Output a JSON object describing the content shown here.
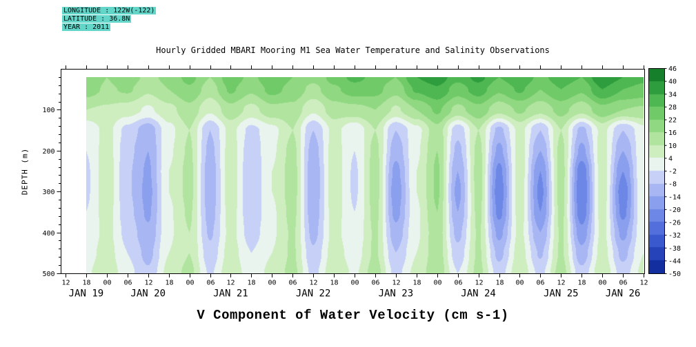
{
  "header": {
    "highlight_color": "#63d6c9",
    "lines": [
      "LONGITUDE : 122W(-122)",
      "LATITUDE : 36.8N",
      "YEAR : 2011"
    ]
  },
  "title": "Hourly Gridded MBARI Mooring M1 Sea Water Temperature and Salinity Observations",
  "bottom_label": "V Component of Water Velocity (cm s-1)",
  "chart_data": {
    "type": "heatmap",
    "title": "Hourly Gridded MBARI Mooring M1 Sea Water Temperature and Salinity Observations",
    "xlabel": "V Component of Water Velocity (cm s-1)",
    "ylabel": "DEPTH (m)",
    "x_start": "JAN 19 12:00 2011",
    "x_end": "JAN 26 12:00 2011",
    "x_tick_labels": [
      "12",
      "18",
      "00",
      "06",
      "12",
      "18",
      "00",
      "06",
      "12",
      "18",
      "00",
      "06",
      "12",
      "18",
      "00",
      "06",
      "12",
      "18",
      "00",
      "06",
      "12",
      "18",
      "00",
      "06",
      "12",
      "18",
      "00",
      "06",
      "12"
    ],
    "date_labels": [
      "JAN 19",
      "JAN 20",
      "JAN 21",
      "JAN 22",
      "JAN 23",
      "JAN 24",
      "JAN 25",
      "JAN 26"
    ],
    "y_ticks": [
      100,
      200,
      300,
      400,
      500
    ],
    "y_minor_step": 20,
    "depth_range_m": [
      0,
      500
    ],
    "time_range_hours": [
      0,
      168
    ],
    "levels": {
      "min": -50,
      "max": 46,
      "step": 6
    },
    "colorbar_ticks": [
      46,
      40,
      34,
      28,
      22,
      16,
      10,
      4,
      -2,
      -8,
      -14,
      -20,
      -26,
      -32,
      -38,
      -44,
      -50
    ],
    "palette_stops": [
      [
        -56,
        "#041a7e"
      ],
      [
        -50,
        "#0a2390"
      ],
      [
        -44,
        "#1c38ae"
      ],
      [
        -38,
        "#2f4ec6"
      ],
      [
        -32,
        "#4563d6"
      ],
      [
        -26,
        "#5f7ae2"
      ],
      [
        -20,
        "#7b93ea"
      ],
      [
        -14,
        "#98abf0"
      ],
      [
        -8,
        "#b7c3f5"
      ],
      [
        -2,
        "#d7def9"
      ],
      [
        1,
        "#e9f4ee"
      ],
      [
        4,
        "#ddf3d2"
      ],
      [
        10,
        "#bfe9ae"
      ],
      [
        16,
        "#a0de8f"
      ],
      [
        22,
        "#80d273"
      ],
      [
        28,
        "#5fc25c"
      ],
      [
        34,
        "#3dab47"
      ],
      [
        40,
        "#1f8f33"
      ],
      [
        46,
        "#0a6e22"
      ],
      [
        52,
        "#064f18"
      ]
    ],
    "grid": {
      "time_hours": [
        6,
        12,
        18,
        24,
        30,
        36,
        42,
        48,
        54,
        60,
        66,
        72,
        78,
        84,
        90,
        96,
        102,
        108,
        114,
        120,
        126,
        132,
        138,
        144,
        150,
        156,
        162,
        168
      ],
      "depths_m": [
        20,
        50,
        100,
        150,
        200,
        250,
        300,
        350,
        400,
        450,
        500
      ],
      "values": [
        [
          22,
          19,
          10,
          -1,
          -2,
          -3,
          -3,
          -2,
          -1,
          1,
          3
        ],
        [
          16,
          15,
          9,
          6,
          7,
          8,
          8,
          7,
          6,
          7,
          9
        ],
        [
          20,
          17,
          7,
          -4,
          -6,
          -7,
          -7,
          -6,
          -4,
          -2,
          0
        ],
        [
          14,
          11,
          3,
          -12,
          -14,
          -15,
          -16,
          -15,
          -13,
          -10,
          -7
        ],
        [
          18,
          16,
          8,
          2,
          3,
          4,
          4,
          3,
          3,
          4,
          6
        ],
        [
          24,
          21,
          14,
          10,
          11,
          12,
          12,
          11,
          10,
          10,
          12
        ],
        [
          16,
          13,
          5,
          -8,
          -10,
          -12,
          -12,
          -11,
          -9,
          -6,
          -3
        ],
        [
          26,
          23,
          14,
          6,
          7,
          8,
          8,
          7,
          6,
          7,
          9
        ],
        [
          20,
          17,
          8,
          -4,
          -6,
          -8,
          -8,
          -7,
          -5,
          -2,
          0
        ],
        [
          28,
          24,
          14,
          2,
          3,
          4,
          4,
          3,
          3,
          4,
          6
        ],
        [
          22,
          20,
          14,
          10,
          12,
          13,
          13,
          12,
          11,
          11,
          12
        ],
        [
          18,
          14,
          5,
          -8,
          -11,
          -13,
          -13,
          -12,
          -10,
          -7,
          -4
        ],
        [
          24,
          21,
          13,
          6,
          7,
          8,
          8,
          7,
          6,
          7,
          9
        ],
        [
          30,
          25,
          14,
          -1,
          -2,
          -3,
          -3,
          -2,
          -1,
          1,
          3
        ],
        [
          26,
          24,
          16,
          10,
          12,
          13,
          13,
          12,
          11,
          11,
          13
        ],
        [
          22,
          18,
          9,
          -8,
          -12,
          -16,
          -18,
          -16,
          -12,
          -8,
          -4
        ],
        [
          34,
          29,
          16,
          2,
          3,
          4,
          4,
          3,
          3,
          4,
          6
        ],
        [
          38,
          33,
          23,
          14,
          16,
          17,
          17,
          16,
          14,
          14,
          15
        ],
        [
          30,
          25,
          14,
          -6,
          -10,
          -14,
          -16,
          -14,
          -10,
          -6,
          -2
        ],
        [
          36,
          31,
          20,
          10,
          12,
          13,
          13,
          12,
          11,
          11,
          12
        ],
        [
          28,
          23,
          12,
          -10,
          -16,
          -22,
          -24,
          -22,
          -16,
          -10,
          -5
        ],
        [
          34,
          29,
          17,
          6,
          7,
          8,
          8,
          7,
          6,
          7,
          9
        ],
        [
          26,
          22,
          12,
          -8,
          -14,
          -20,
          -22,
          -20,
          -14,
          -9,
          -4
        ],
        [
          32,
          28,
          18,
          10,
          12,
          13,
          13,
          12,
          11,
          11,
          13
        ],
        [
          28,
          23,
          12,
          -10,
          -16,
          -24,
          -26,
          -24,
          -18,
          -12,
          -6
        ],
        [
          40,
          34,
          20,
          6,
          7,
          8,
          8,
          7,
          6,
          7,
          9
        ],
        [
          34,
          28,
          16,
          -8,
          -14,
          -20,
          -24,
          -22,
          -16,
          -10,
          -5
        ],
        [
          30,
          26,
          15,
          2,
          3,
          4,
          4,
          3,
          3,
          4,
          6
        ]
      ]
    }
  }
}
